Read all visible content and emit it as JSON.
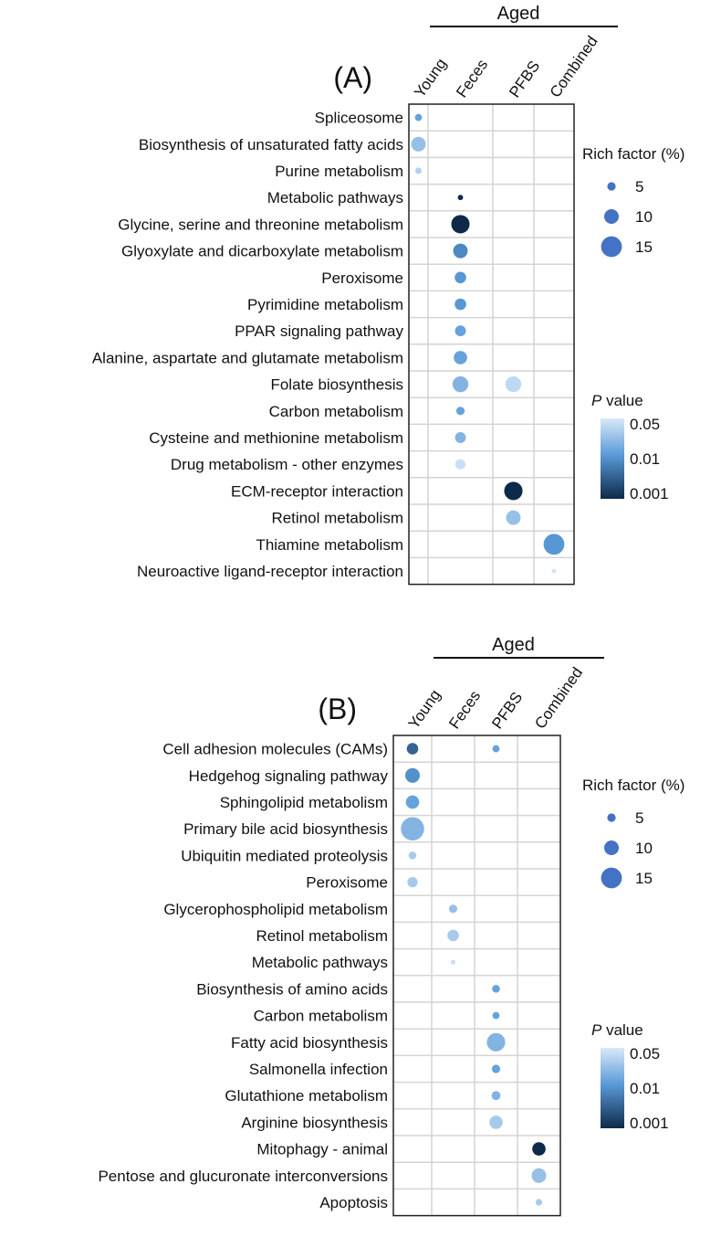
{
  "chart_data": [
    {
      "type": "scatter",
      "title": "(A)",
      "columns": [
        "Young",
        "Feces",
        "PFBS",
        "Combined"
      ],
      "group_label": "Aged",
      "group_columns": [
        "Feces",
        "PFBS",
        "Combined"
      ],
      "rows": [
        "Spliceosome",
        "Biosynthesis of unsaturated fatty acids",
        "Purine metabolism",
        "Metabolic pathways",
        "Glycine, serine and threonine metabolism",
        "Glyoxylate and dicarboxylate metabolism",
        "Peroxisome",
        "Pyrimidine metabolism",
        "PPAR signaling pathway",
        "Alanine, aspartate and glutamate metabolism",
        "Folate biosynthesis",
        "Carbon metabolism",
        "Cysteine and methionine metabolism",
        "Drug metabolism - other enzymes",
        "ECM-receptor interaction",
        "Retinol metabolism",
        "Thiamine metabolism",
        "Neuroactive ligand-receptor interaction"
      ],
      "points": [
        {
          "row": 0,
          "col": 0,
          "rich_factor": 4,
          "p_value": 0.01
        },
        {
          "row": 1,
          "col": 0,
          "rich_factor": 10,
          "p_value": 0.02
        },
        {
          "row": 2,
          "col": 0,
          "rich_factor": 3.5,
          "p_value": 0.03
        },
        {
          "row": 3,
          "col": 1,
          "rich_factor": 2.5,
          "p_value": 0.001
        },
        {
          "row": 4,
          "col": 1,
          "rich_factor": 13,
          "p_value": 0.001
        },
        {
          "row": 5,
          "col": 1,
          "rich_factor": 10,
          "p_value": 0.006
        },
        {
          "row": 6,
          "col": 1,
          "rich_factor": 7.5,
          "p_value": 0.008
        },
        {
          "row": 7,
          "col": 1,
          "rich_factor": 7.5,
          "p_value": 0.008
        },
        {
          "row": 8,
          "col": 1,
          "rich_factor": 7,
          "p_value": 0.01
        },
        {
          "row": 9,
          "col": 1,
          "rich_factor": 9,
          "p_value": 0.01
        },
        {
          "row": 10,
          "col": 1,
          "rich_factor": 11,
          "p_value": 0.015
        },
        {
          "row": 10,
          "col": 2,
          "rich_factor": 11,
          "p_value": 0.035
        },
        {
          "row": 11,
          "col": 1,
          "rich_factor": 5,
          "p_value": 0.01
        },
        {
          "row": 12,
          "col": 1,
          "rich_factor": 7,
          "p_value": 0.015
        },
        {
          "row": 13,
          "col": 1,
          "rich_factor": 6.5,
          "p_value": 0.04
        },
        {
          "row": 14,
          "col": 2,
          "rich_factor": 13,
          "p_value": 0.001
        },
        {
          "row": 15,
          "col": 2,
          "rich_factor": 10,
          "p_value": 0.02
        },
        {
          "row": 16,
          "col": 3,
          "rich_factor": 15,
          "p_value": 0.008
        },
        {
          "row": 17,
          "col": 3,
          "rich_factor": 2,
          "p_value": 0.045
        }
      ],
      "size_legend": {
        "title": "Rich factor (%)",
        "values": [
          5,
          10,
          15
        ]
      },
      "color_legend": {
        "title_italic": "P",
        "title_rest": " value",
        "ticks": [
          "0.05",
          "0.01",
          "0.001"
        ]
      }
    },
    {
      "type": "scatter",
      "title": "(B)",
      "columns": [
        "Young",
        "Feces",
        "PFBS",
        "Combined"
      ],
      "group_label": "Aged",
      "group_columns": [
        "Feces",
        "PFBS",
        "Combined"
      ],
      "rows": [
        "Cell adhesion molecules (CAMs)",
        "Hedgehog signaling pathway",
        "Sphingolipid metabolism",
        "Primary bile acid biosynthesis",
        "Ubiquitin mediated proteolysis",
        "Peroxisome",
        "Glycerophospholipid metabolism",
        "Retinol metabolism",
        "Metabolic pathways",
        "Biosynthesis of amino acids",
        "Carbon metabolism",
        "Fatty acid biosynthesis",
        "Salmonella infection",
        "Glutathione metabolism",
        "Arginine biosynthesis",
        "Mitophagy - animal",
        "Pentose and glucuronate interconversions",
        "Apoptosis"
      ],
      "points": [
        {
          "row": 0,
          "col": 0,
          "rich_factor": 7.5,
          "p_value": 0.003
        },
        {
          "row": 0,
          "col": 2,
          "rich_factor": 4,
          "p_value": 0.01
        },
        {
          "row": 1,
          "col": 0,
          "rich_factor": 10,
          "p_value": 0.007
        },
        {
          "row": 2,
          "col": 0,
          "rich_factor": 9,
          "p_value": 0.01
        },
        {
          "row": 3,
          "col": 0,
          "rich_factor": 17,
          "p_value": 0.015
        },
        {
          "row": 4,
          "col": 0,
          "rich_factor": 4.5,
          "p_value": 0.025
        },
        {
          "row": 5,
          "col": 0,
          "rich_factor": 6.5,
          "p_value": 0.025
        },
        {
          "row": 6,
          "col": 1,
          "rich_factor": 5,
          "p_value": 0.02
        },
        {
          "row": 7,
          "col": 1,
          "rich_factor": 7.5,
          "p_value": 0.025
        },
        {
          "row": 8,
          "col": 1,
          "rich_factor": 2,
          "p_value": 0.04
        },
        {
          "row": 9,
          "col": 2,
          "rich_factor": 4.5,
          "p_value": 0.01
        },
        {
          "row": 10,
          "col": 2,
          "rich_factor": 4,
          "p_value": 0.01
        },
        {
          "row": 11,
          "col": 2,
          "rich_factor": 13,
          "p_value": 0.015
        },
        {
          "row": 12,
          "col": 2,
          "rich_factor": 5,
          "p_value": 0.01
        },
        {
          "row": 13,
          "col": 2,
          "rich_factor": 5.5,
          "p_value": 0.015
        },
        {
          "row": 14,
          "col": 2,
          "rich_factor": 9,
          "p_value": 0.025
        },
        {
          "row": 15,
          "col": 3,
          "rich_factor": 9,
          "p_value": 0.001
        },
        {
          "row": 16,
          "col": 3,
          "rich_factor": 10,
          "p_value": 0.02
        },
        {
          "row": 17,
          "col": 3,
          "rich_factor": 3.5,
          "p_value": 0.025
        }
      ],
      "size_legend": {
        "title": "Rich factor (%)",
        "values": [
          5,
          10,
          15
        ]
      },
      "color_legend": {
        "title_italic": "P",
        "title_rest": " value",
        "ticks": [
          "0.05",
          "0.01",
          "0.001"
        ]
      }
    }
  ]
}
